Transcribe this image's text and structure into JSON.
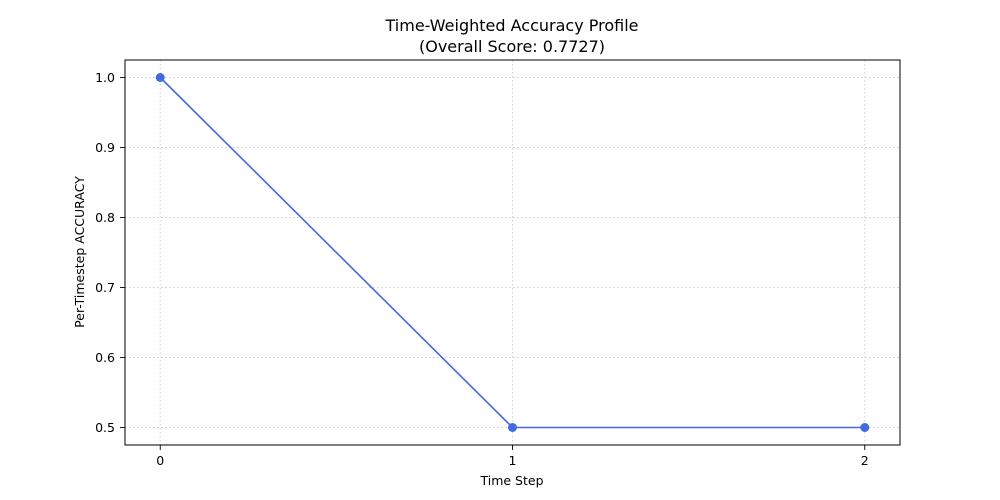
{
  "chart_data": {
    "type": "line",
    "title": "Time-Weighted Accuracy Profile",
    "subtitle": "(Overall Score: 0.7727)",
    "xlabel": "Time Step",
    "ylabel": "Per-Timestep ACCURACY",
    "x": [
      0,
      1,
      2
    ],
    "xticks": [
      "0",
      "1",
      "2"
    ],
    "yticks": [
      "0.5",
      "0.6",
      "0.7",
      "0.8",
      "0.9",
      "1.0"
    ],
    "ytick_values": [
      0.5,
      0.6,
      0.7,
      0.8,
      0.9,
      1.0
    ],
    "xlim": [
      -0.1,
      2.1
    ],
    "ylim": [
      0.475,
      1.025
    ],
    "grid": true,
    "series": [
      {
        "values": [
          1.0,
          0.5,
          0.5
        ],
        "color": "#4169e1",
        "marker": "circle"
      }
    ]
  }
}
